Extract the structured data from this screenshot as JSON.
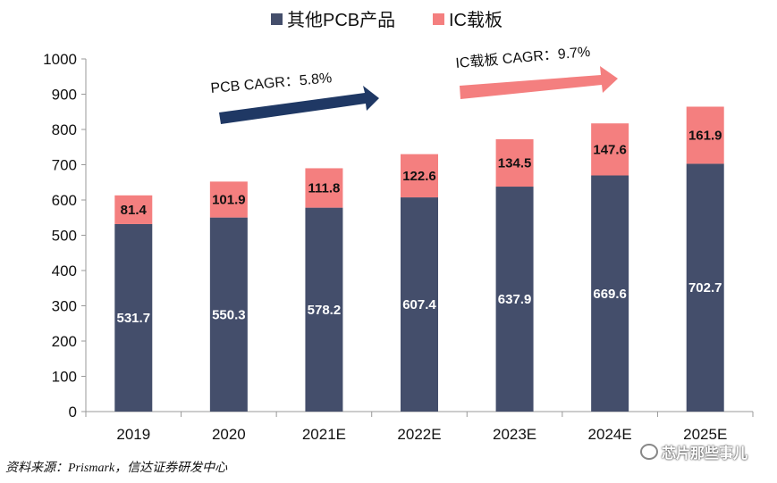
{
  "chart_data": {
    "type": "bar",
    "stacked": true,
    "categories": [
      "2019",
      "2020",
      "2021E",
      "2022E",
      "2023E",
      "2024E",
      "2025E"
    ],
    "series": [
      {
        "name": "其他PCB产品",
        "color": "#444e6b",
        "label_color": "#ffffff",
        "values": [
          531.7,
          550.3,
          578.2,
          607.4,
          637.9,
          669.6,
          702.7
        ]
      },
      {
        "name": "IC载板",
        "color": "#f47f7f",
        "label_color": "#111111",
        "values": [
          81.4,
          101.9,
          111.8,
          122.6,
          134.5,
          147.6,
          161.9
        ]
      }
    ],
    "ylim": [
      0,
      1000
    ],
    "yticks": [
      0,
      100,
      200,
      300,
      400,
      500,
      600,
      700,
      800,
      900,
      1000
    ],
    "legend_position": "top-center",
    "annotations": [
      {
        "text": "PCB CAGR：5.8%",
        "color": "#1f3864"
      },
      {
        "text": "IC载板 CAGR：9.7%",
        "color": "#f47f7f"
      }
    ]
  },
  "source_text": "资料来源：Prismark，信达证券研发中心",
  "watermark_text": "芯片那些事儿"
}
